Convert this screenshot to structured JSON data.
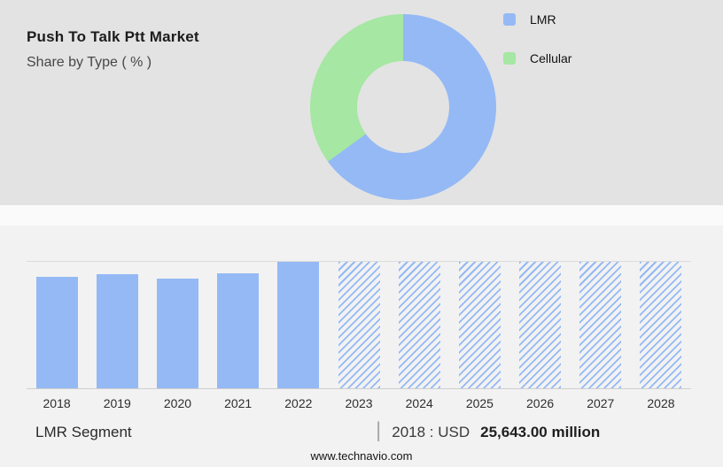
{
  "header": {
    "title": "Push To Talk Ptt Market",
    "subtitle": "Share by Type ( % )"
  },
  "colors": {
    "lmr_blue": "#94b9f5",
    "cellular_green": "#a5e7a3",
    "top_bg": "#e3e3e3",
    "bottom_bg": "#f2f2f2"
  },
  "legend": [
    {
      "label": "LMR",
      "color": "#94b9f5"
    },
    {
      "label": "Cellular",
      "color": "#a5e7a3"
    }
  ],
  "chart_data": [
    {
      "type": "pie",
      "title": "Share by Type ( % )",
      "labels": [
        "LMR",
        "Cellular"
      ],
      "values": [
        65,
        35
      ],
      "colors": [
        "#94b9f5",
        "#a5e7a3"
      ],
      "donut": true,
      "legend_position": "right"
    },
    {
      "type": "bar",
      "title": "LMR Segment",
      "categories": [
        "2018",
        "2019",
        "2020",
        "2021",
        "2022",
        "2023",
        "2024",
        "2025",
        "2026",
        "2027",
        "2028"
      ],
      "values": [
        88,
        90,
        87,
        91,
        100,
        100,
        100,
        100,
        100,
        100,
        100
      ],
      "units": "relative bar height (max = 100, axis unlabeled)",
      "forecast_start": "2023",
      "xlabel": "",
      "ylabel": "",
      "ylim": [
        0,
        100
      ],
      "grid": "top and baseline lines only",
      "bar_color": "#94b9f5",
      "forecast_style": "diagonal-hatch"
    }
  ],
  "footer": {
    "segment_label": "LMR Segment",
    "separator": "|",
    "stat_prefix": "2018 : USD",
    "stat_value": "25,643.00 million",
    "website": "www.technavio.com"
  }
}
